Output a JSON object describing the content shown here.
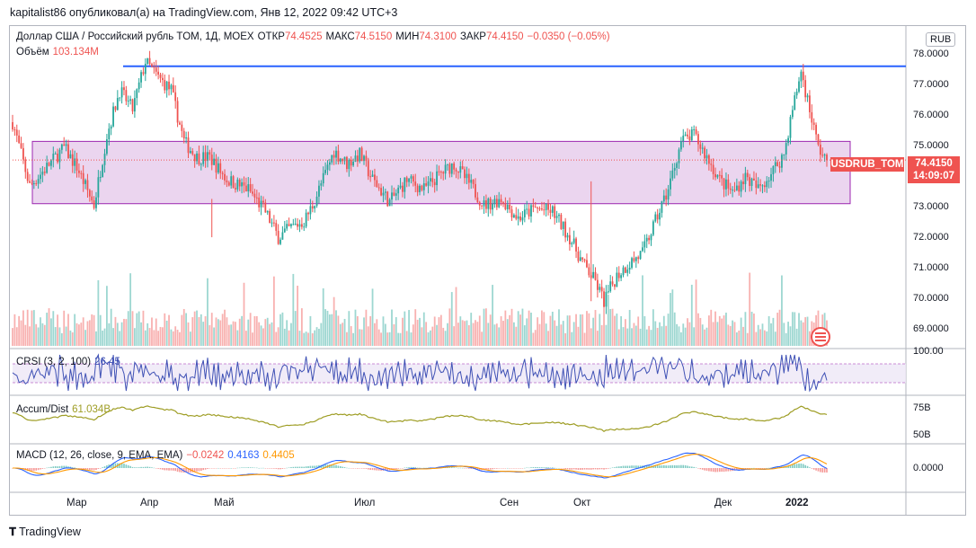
{
  "header": {
    "publisher_line": "kapitalist86 опубликовал(а) на TradingView.com, Янв 12, 2022 09:42 UTC+3"
  },
  "main_legend": {
    "title": "Доллар США / Российский рубль TOM, 1Д, MOEX",
    "open_label": "ОТКР",
    "open": "74.4525",
    "high_label": "МАКС",
    "high": "74.5150",
    "low_label": "МИН",
    "low": "74.3100",
    "close_label": "ЗАКР",
    "close": "74.4150",
    "change": "−0.0350 (−0.05%)"
  },
  "volume_legend": {
    "label": "Объём",
    "value": "103.134M"
  },
  "currency_tag": "RUB",
  "price_box": {
    "symbol": "USDRUB_TOM",
    "price": "74.4150",
    "countdown": "14:09:07"
  },
  "price_axis": [
    "78.0000",
    "77.0000",
    "76.0000",
    "75.0000",
    "73.0000",
    "72.0000",
    "71.0000",
    "70.0000",
    "69.0000"
  ],
  "crsi_legend": {
    "label": "CRSI (3, 2, 100)",
    "value": "26.45"
  },
  "crsi_axis": "100.00",
  "ad_legend": {
    "label": "Accum/Dist",
    "value": "61.034B"
  },
  "ad_axis": [
    "75B",
    "50B"
  ],
  "macd_legend": {
    "label": "MACD (12, 26, close, 9, EMA, EMA)",
    "hist": "−0.0242",
    "macd": "0.4163",
    "signal": "0.4405"
  },
  "macd_axis": "0.0000",
  "time_axis": [
    "Мар",
    "Апр",
    "Май",
    "Июл",
    "Сен",
    "Окт",
    "Дек",
    "2022"
  ],
  "footer": {
    "brand": "TradingView"
  },
  "colors": {
    "up": "#26a69a",
    "down": "#ef5350",
    "resistance": "#2962ff",
    "range_fill": "#e1bee7",
    "range_border": "#9c27b0",
    "crsi": "#3f51b5",
    "ad": "#9e9d24",
    "macd": "#2962ff",
    "signal": "#ff9800"
  },
  "chart_data": {
    "type": "candlestick",
    "symbol": "USDRUB_TOM",
    "interval": "1D",
    "ylim": [
      68.6,
      78.3
    ],
    "resistance_level": 77.35,
    "range_box": {
      "top": 75.0,
      "bottom": 73.05
    },
    "price_path": [
      {
        "t": 0,
        "v": 75.6
      },
      {
        "t": 8,
        "v": 73.6
      },
      {
        "t": 16,
        "v": 74.2
      },
      {
        "t": 24,
        "v": 74.8
      },
      {
        "t": 30,
        "v": 74.2
      },
      {
        "t": 38,
        "v": 73.0
      },
      {
        "t": 44,
        "v": 75.2
      },
      {
        "t": 50,
        "v": 76.6
      },
      {
        "t": 56,
        "v": 76.0
      },
      {
        "t": 62,
        "v": 77.5
      },
      {
        "t": 68,
        "v": 77.0
      },
      {
        "t": 74,
        "v": 76.6
      },
      {
        "t": 80,
        "v": 75.0
      },
      {
        "t": 86,
        "v": 74.5
      },
      {
        "t": 92,
        "v": 74.5
      },
      {
        "t": 100,
        "v": 73.8
      },
      {
        "t": 110,
        "v": 73.5
      },
      {
        "t": 118,
        "v": 72.8
      },
      {
        "t": 124,
        "v": 72.0
      },
      {
        "t": 130,
        "v": 72.3
      },
      {
        "t": 136,
        "v": 72.5
      },
      {
        "t": 140,
        "v": 73.0
      },
      {
        "t": 146,
        "v": 74.0
      },
      {
        "t": 150,
        "v": 74.7
      },
      {
        "t": 156,
        "v": 74.3
      },
      {
        "t": 162,
        "v": 74.6
      },
      {
        "t": 168,
        "v": 73.8
      },
      {
        "t": 176,
        "v": 73.1
      },
      {
        "t": 184,
        "v": 73.8
      },
      {
        "t": 192,
        "v": 73.5
      },
      {
        "t": 200,
        "v": 74.0
      },
      {
        "t": 206,
        "v": 74.3
      },
      {
        "t": 214,
        "v": 73.6
      },
      {
        "t": 220,
        "v": 73.0
      },
      {
        "t": 228,
        "v": 73.2
      },
      {
        "t": 236,
        "v": 72.6
      },
      {
        "t": 244,
        "v": 72.9
      },
      {
        "t": 252,
        "v": 72.8
      },
      {
        "t": 260,
        "v": 72.0
      },
      {
        "t": 266,
        "v": 71.2
      },
      {
        "t": 272,
        "v": 70.6
      },
      {
        "t": 276,
        "v": 70.0
      },
      {
        "t": 282,
        "v": 70.8
      },
      {
        "t": 288,
        "v": 71.2
      },
      {
        "t": 294,
        "v": 71.5
      },
      {
        "t": 300,
        "v": 72.5
      },
      {
        "t": 306,
        "v": 73.5
      },
      {
        "t": 312,
        "v": 75.0
      },
      {
        "t": 318,
        "v": 75.2
      },
      {
        "t": 324,
        "v": 74.5
      },
      {
        "t": 330,
        "v": 73.8
      },
      {
        "t": 336,
        "v": 73.4
      },
      {
        "t": 342,
        "v": 73.9
      },
      {
        "t": 348,
        "v": 73.5
      },
      {
        "t": 354,
        "v": 74.0
      },
      {
        "t": 360,
        "v": 74.6
      },
      {
        "t": 364,
        "v": 76.0
      },
      {
        "t": 368,
        "v": 77.2
      },
      {
        "t": 372,
        "v": 76.0
      },
      {
        "t": 376,
        "v": 74.8
      },
      {
        "t": 380,
        "v": 74.42
      }
    ]
  }
}
